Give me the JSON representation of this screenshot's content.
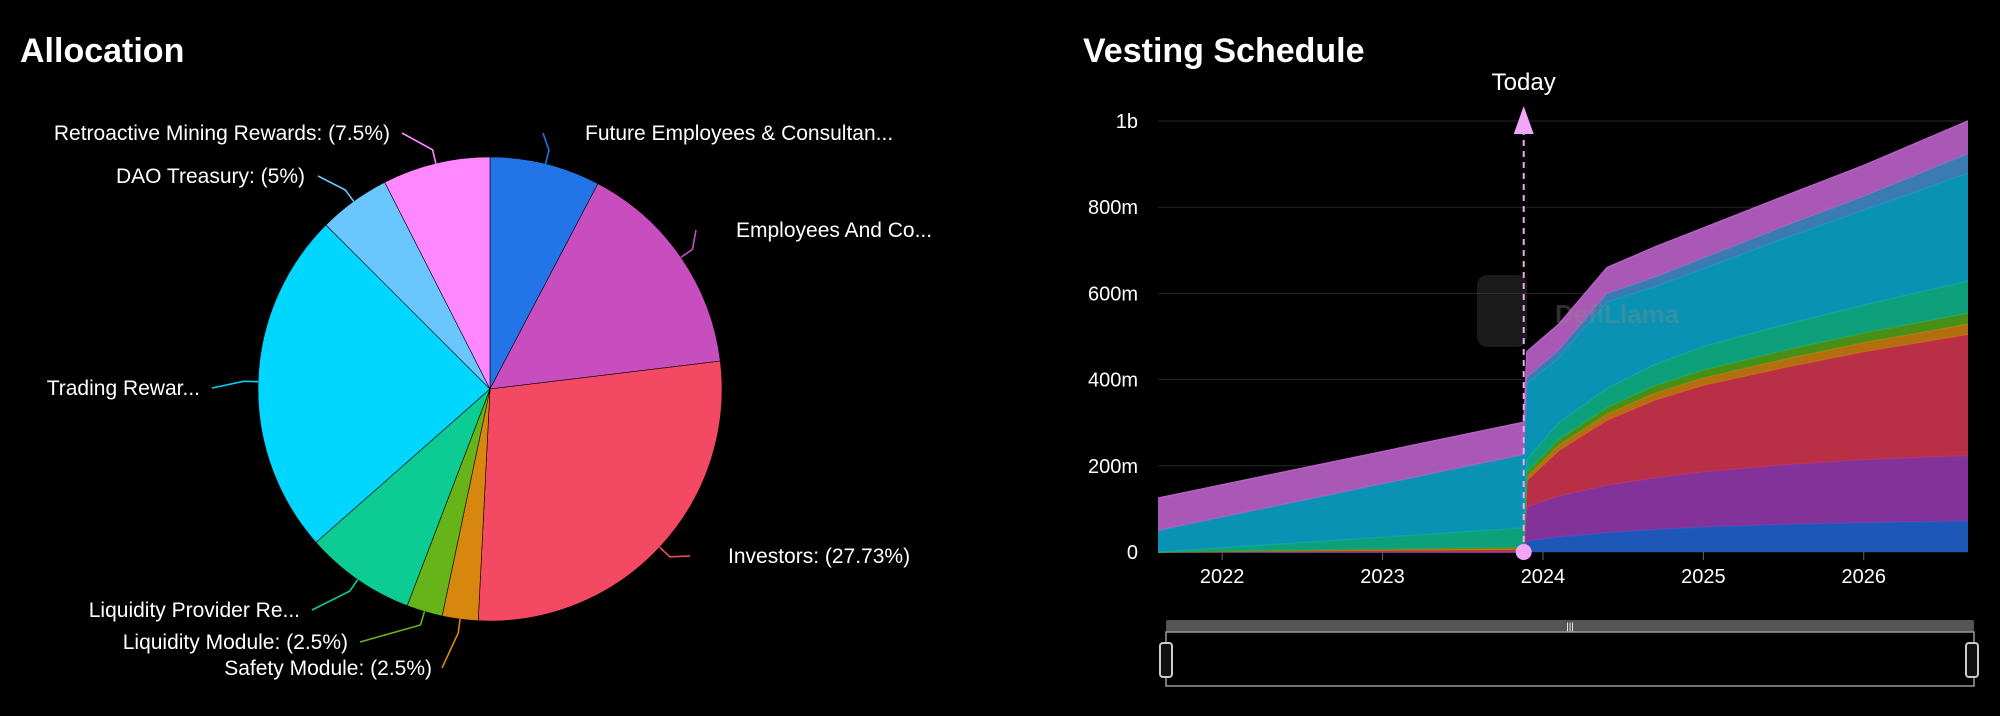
{
  "allocation": {
    "title": "Allocation",
    "chart_data": {
      "type": "pie",
      "title": "Allocation",
      "slices": [
        {
          "label": "Future Employees & Consultan...",
          "value": 7.7,
          "color": "#2374e6"
        },
        {
          "label": "Employees And Co...",
          "value": 15.38,
          "color": "#c84dbf"
        },
        {
          "label": "Investors: (27.73%)",
          "value": 27.73,
          "color": "#f44963"
        },
        {
          "label": "Safety Module: (2.5%)",
          "value": 2.5,
          "color": "#d7870e"
        },
        {
          "label": "Liquidity Module: (2.5%)",
          "value": 2.5,
          "color": "#66b419"
        },
        {
          "label": "Liquidity Provider Re...",
          "value": 7.69,
          "color": "#0ccb93"
        },
        {
          "label": "Trading Rewar...",
          "value": 24.0,
          "color": "#00d6ff"
        },
        {
          "label": "DAO Treasury: (5%)",
          "value": 5.0,
          "color": "#6ac6ff"
        },
        {
          "label": "Retroactive Mining Rewards: (7.5%)",
          "value": 7.5,
          "color": "#ff87ff"
        }
      ]
    }
  },
  "vesting": {
    "title": "Vesting Schedule",
    "today_label": "Today",
    "watermark": "DefiLlama",
    "chart_data": {
      "type": "area",
      "title": "Vesting Schedule",
      "stacked": true,
      "x_start": 2021.6,
      "x_end": 2026.65,
      "today": 2023.88,
      "ylim": [
        0,
        1000
      ],
      "y_unit": "m",
      "y_ticks": [
        {
          "v": 0,
          "label": "0"
        },
        {
          "v": 200,
          "label": "200m"
        },
        {
          "v": 400,
          "label": "400m"
        },
        {
          "v": 600,
          "label": "600m"
        },
        {
          "v": 800,
          "label": "800m"
        },
        {
          "v": 1000,
          "label": "1b"
        }
      ],
      "x_ticks": [
        {
          "v": 2022,
          "label": "2022"
        },
        {
          "v": 2023,
          "label": "2023"
        },
        {
          "v": 2024,
          "label": "2024"
        },
        {
          "v": 2025,
          "label": "2025"
        },
        {
          "v": 2026,
          "label": "2026"
        }
      ],
      "x": [
        2021.6,
        2023.88,
        2023.9,
        2024.1,
        2024.4,
        2024.7,
        2025.0,
        2025.5,
        2026.0,
        2026.65
      ],
      "series": [
        {
          "color": "#1f5fc8",
          "values": [
            0,
            0,
            25,
            35,
            45,
            52,
            58,
            64,
            68,
            72
          ]
        },
        {
          "color": "#8e36a6",
          "values": [
            0,
            0,
            80,
            95,
            110,
            120,
            128,
            138,
            146,
            152
          ]
        },
        {
          "color": "#c8334c",
          "values": [
            0,
            5,
            60,
            105,
            150,
            180,
            200,
            225,
            250,
            280
          ]
        },
        {
          "color": "#c2770f",
          "values": [
            0,
            3,
            10,
            13,
            15,
            17,
            18,
            20,
            22,
            25
          ]
        },
        {
          "color": "#4f9a18",
          "values": [
            0,
            3,
            10,
            13,
            15,
            17,
            18,
            20,
            22,
            25
          ]
        },
        {
          "color": "#0fae84",
          "values": [
            0,
            45,
            30,
            40,
            45,
            50,
            55,
            60,
            65,
            75
          ]
        },
        {
          "color": "#0a9ec2",
          "values": [
            50,
            170,
            175,
            150,
            200,
            180,
            180,
            200,
            220,
            250
          ]
        },
        {
          "color": "#3f86c0",
          "values": [
            0,
            0,
            15,
            18,
            20,
            22,
            25,
            28,
            32,
            45
          ]
        },
        {
          "color": "#b760c4",
          "values": [
            75,
            75,
            60,
            60,
            60,
            70,
            70,
            70,
            72,
            76
          ]
        }
      ]
    }
  }
}
